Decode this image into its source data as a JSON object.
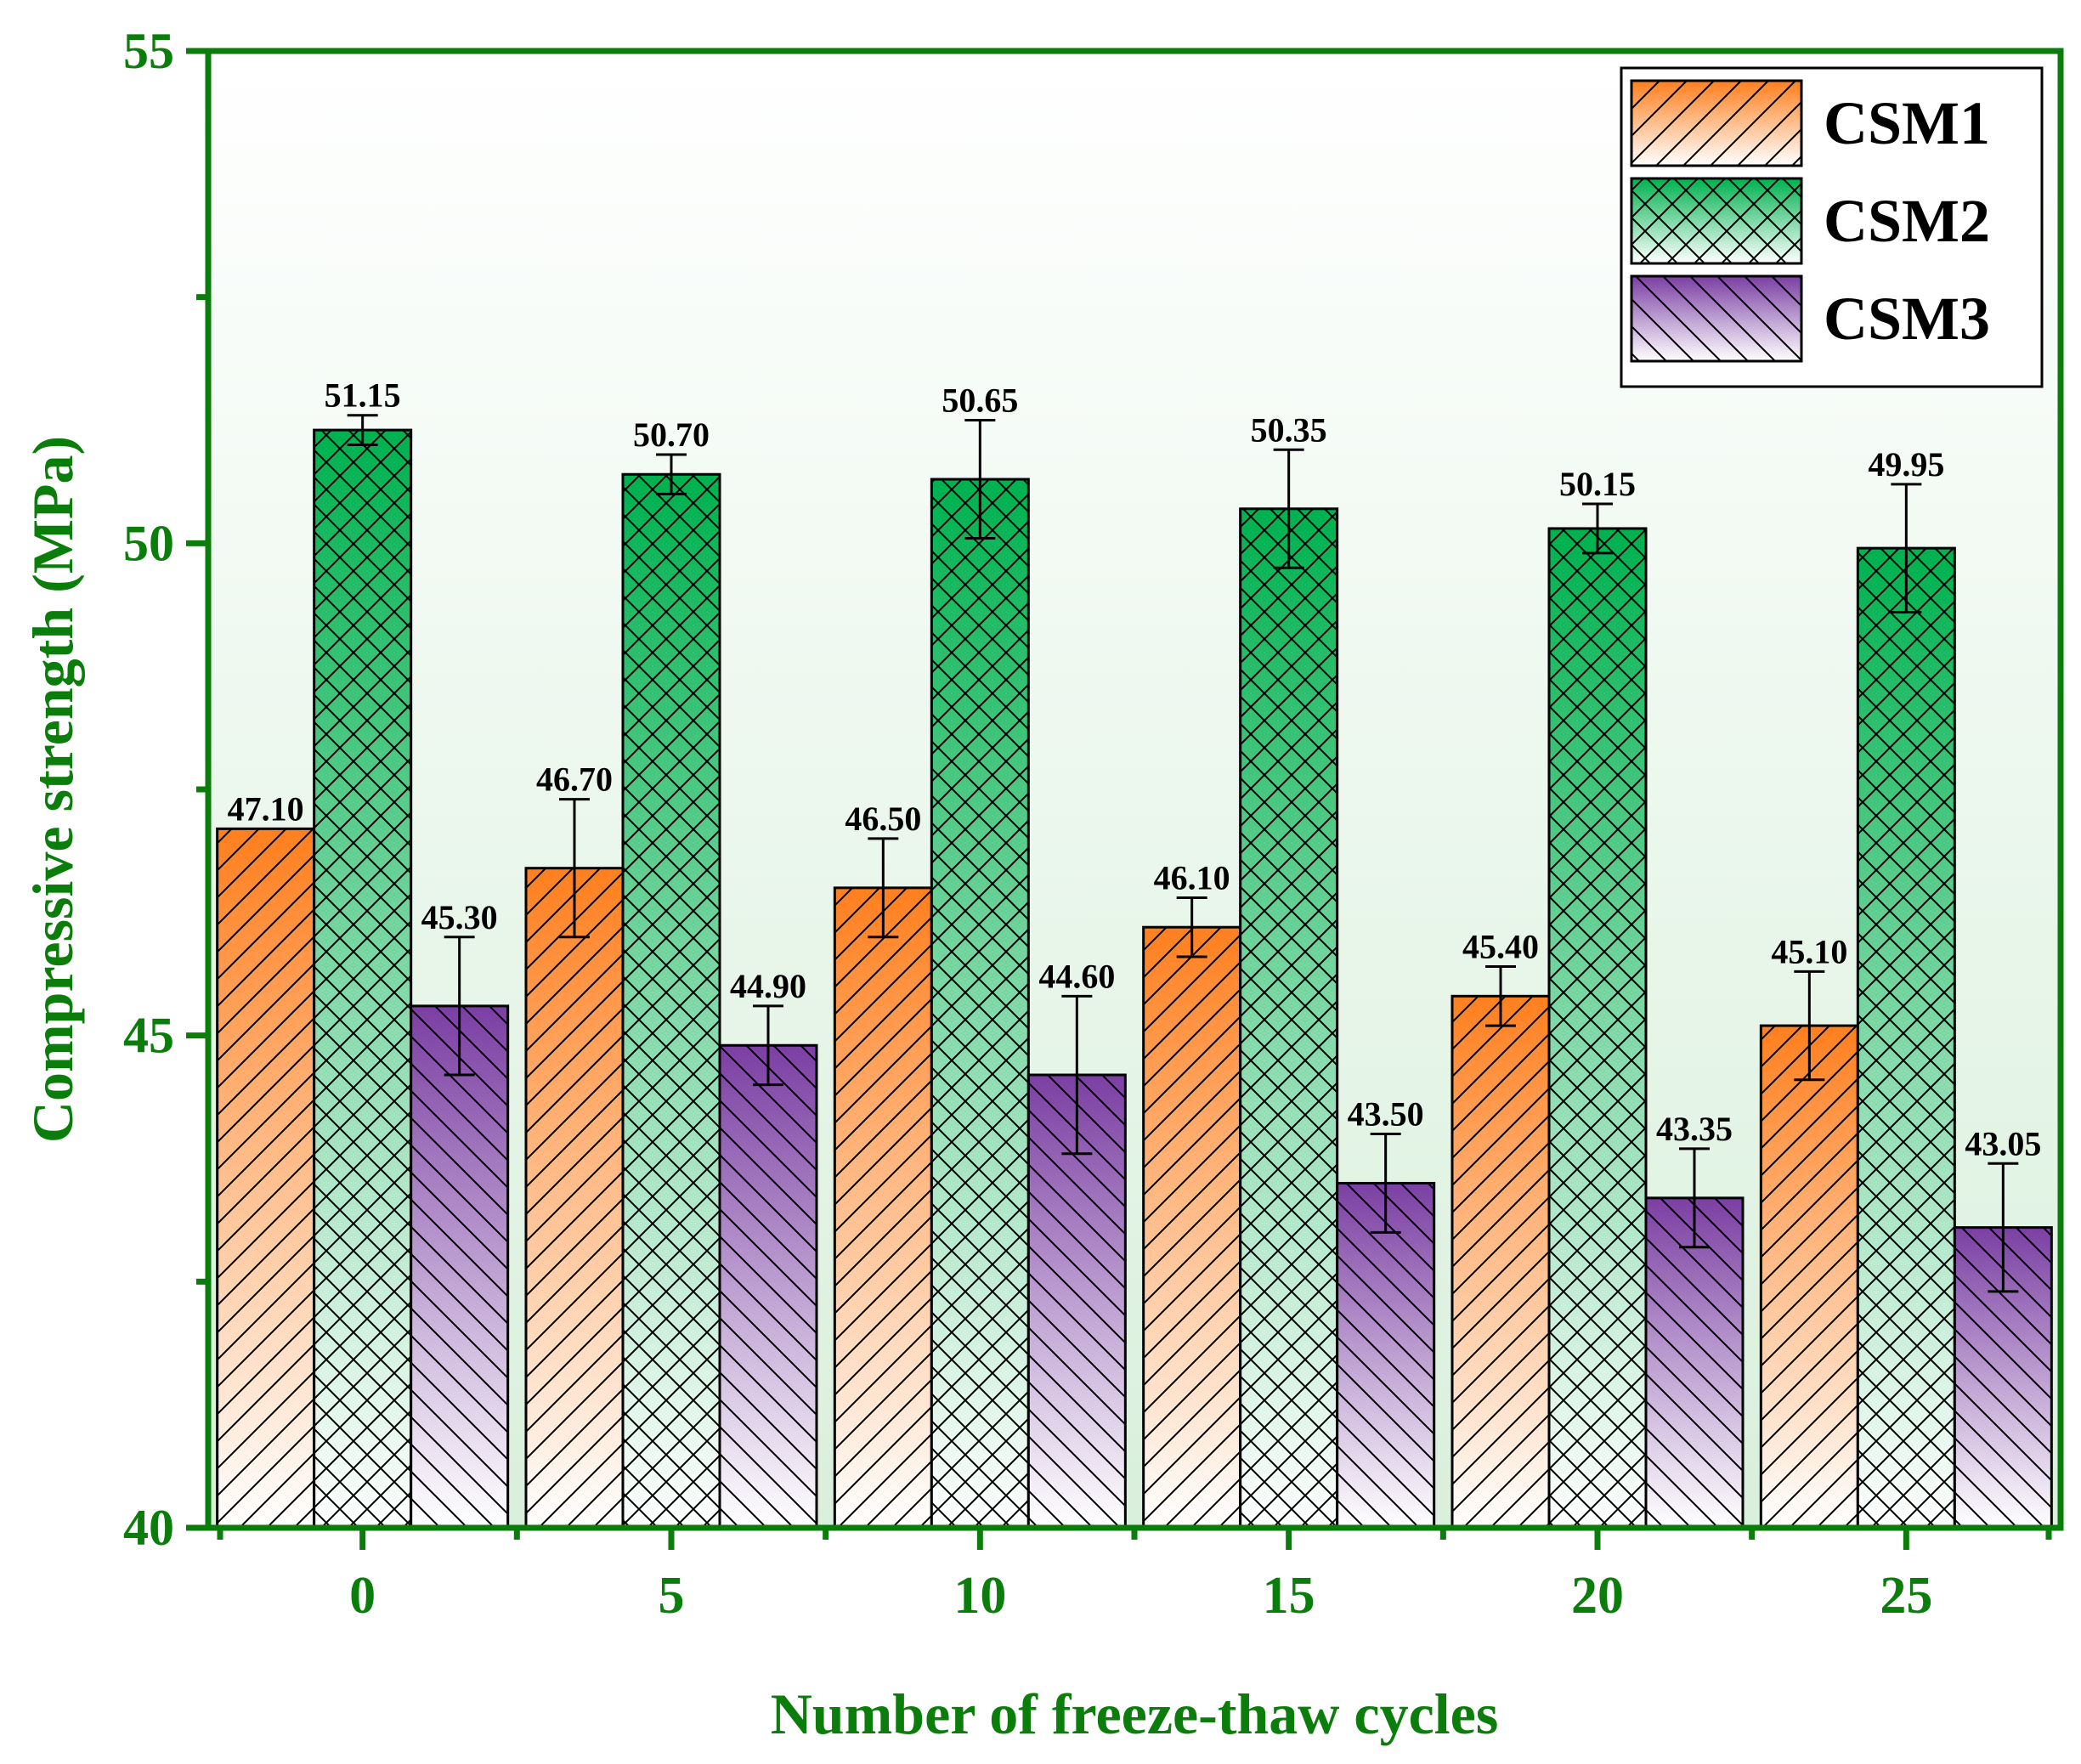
{
  "chart_data": {
    "type": "bar",
    "xlabel": "Number of freeze-thaw cycles",
    "ylabel": "Compressive strength (MPa)",
    "ylim": [
      40,
      55
    ],
    "yticks": [
      40,
      45,
      50,
      55
    ],
    "categories": [
      "0",
      "5",
      "10",
      "15",
      "20",
      "25"
    ],
    "grid": false,
    "legend_position": "top-right",
    "series": [
      {
        "name": "CSM1",
        "color": "#ff7f1e",
        "hatch": "forward-diagonal",
        "values": [
          47.1,
          46.7,
          46.5,
          46.1,
          45.4,
          45.1
        ],
        "errors": [
          0.0,
          0.7,
          0.5,
          0.3,
          0.3,
          0.55
        ],
        "labels": [
          "47.10",
          "46.70",
          "46.50",
          "46.10",
          "45.40",
          "45.10"
        ]
      },
      {
        "name": "CSM2",
        "color": "#00b14f",
        "hatch": "cross",
        "values": [
          51.15,
          50.7,
          50.65,
          50.35,
          50.15,
          49.95
        ],
        "errors": [
          0.15,
          0.2,
          0.6,
          0.6,
          0.25,
          0.65
        ],
        "labels": [
          "51.15",
          "50.70",
          "50.65",
          "50.35",
          "50.15",
          "49.95"
        ]
      },
      {
        "name": "CSM3",
        "color": "#7b3fa3",
        "hatch": "back-diagonal",
        "values": [
          45.3,
          44.9,
          44.6,
          43.5,
          43.35,
          43.05
        ],
        "errors": [
          0.7,
          0.4,
          0.8,
          0.5,
          0.5,
          0.65
        ],
        "labels": [
          "45.30",
          "44.90",
          "44.60",
          "43.50",
          "43.35",
          "43.05"
        ]
      }
    ]
  },
  "colors": {
    "axis": "#0b7d0b",
    "background_top": "#ffffff",
    "background_bottom": "#d9f0dc"
  }
}
